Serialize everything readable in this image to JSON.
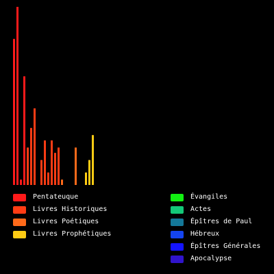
{
  "chart_data": {
    "type": "bar",
    "ylim": [
      0,
      100
    ],
    "books": [
      {
        "group": 0,
        "value": 82
      },
      {
        "group": 0,
        "value": 100
      },
      {
        "group": 0,
        "value": 3
      },
      {
        "group": 0,
        "value": 61
      },
      {
        "group": 1,
        "value": 21
      },
      {
        "group": 1,
        "value": 32
      },
      {
        "group": 1,
        "value": 43
      },
      {
        "group": 1,
        "value": 0
      },
      {
        "group": 1,
        "value": 14
      },
      {
        "group": 1,
        "value": 25
      },
      {
        "group": 1,
        "value": 7
      },
      {
        "group": 1,
        "value": 25
      },
      {
        "group": 1,
        "value": 18
      },
      {
        "group": 1,
        "value": 21
      },
      {
        "group": 2,
        "value": 3
      },
      {
        "group": 2,
        "value": 0
      },
      {
        "group": 2,
        "value": 0
      },
      {
        "group": 2,
        "value": 0
      },
      {
        "group": 2,
        "value": 21
      },
      {
        "group": 2,
        "value": 0
      },
      {
        "group": 2,
        "value": 0
      },
      {
        "group": 3,
        "value": 7
      },
      {
        "group": 3,
        "value": 14
      },
      {
        "group": 3,
        "value": 28
      }
    ]
  },
  "legend": [
    {
      "label": "Pentateuque",
      "color": "#ff1a1a"
    },
    {
      "label": "Livres Historiques",
      "color": "#ff3c14"
    },
    {
      "label": "Livres Poétiques",
      "color": "#ff6a1a"
    },
    {
      "label": "Livres Prophétiques",
      "color": "#ffcc14"
    },
    {
      "label": "Évangiles",
      "color": "#12f012"
    },
    {
      "label": "Actes",
      "color": "#14c878"
    },
    {
      "label": "Épîtres de Paul",
      "color": "#147898"
    },
    {
      "label": "Hébreux",
      "color": "#1444f0"
    },
    {
      "label": "Épîtres Générales",
      "color": "#1414ff"
    },
    {
      "label": "Apocalypse",
      "color": "#3014cc"
    }
  ]
}
